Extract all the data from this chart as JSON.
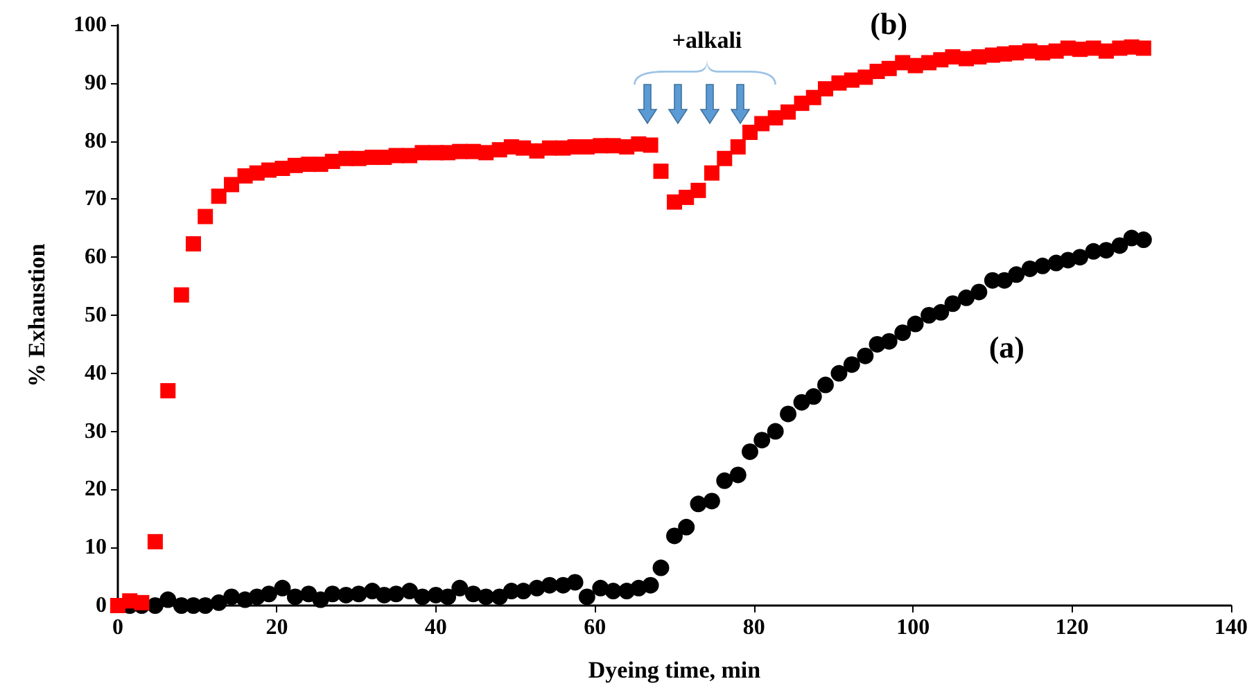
{
  "chart_data": {
    "type": "scatter",
    "xlabel": "Dyeing time, min",
    "ylabel": "% Exhaustion",
    "xlim": [
      0,
      140
    ],
    "xticks": [
      0,
      20,
      40,
      60,
      80,
      100,
      120,
      140
    ],
    "ylim": [
      0,
      100
    ],
    "yticks": [
      0,
      10,
      20,
      30,
      40,
      50,
      60,
      70,
      80,
      90,
      100
    ],
    "grid": false,
    "series": [
      {
        "name": "(a)",
        "color": "#000000",
        "marker": "circle",
        "x": [
          1.5,
          3,
          4.7,
          6.3,
          8,
          9.5,
          11,
          12.7,
          14.3,
          16,
          17.5,
          19,
          20.7,
          22.3,
          24,
          25.5,
          27,
          28.7,
          30.3,
          32,
          33.5,
          35,
          36.7,
          38.3,
          40,
          41.5,
          43,
          44.7,
          46.3,
          48,
          49.5,
          51,
          52.7,
          54.3,
          56,
          57.5,
          59,
          60.7,
          62.3,
          64,
          65.5,
          67,
          68.3,
          70,
          71.5,
          73,
          74.7,
          76.3,
          78,
          79.5,
          81,
          82.7,
          84.3,
          86,
          87.5,
          89,
          90.7,
          92.3,
          94,
          95.5,
          97,
          98.7,
          100.3,
          102,
          103.5,
          105,
          106.7,
          108.3,
          110,
          111.5,
          113,
          114.7,
          116.3,
          118,
          119.5,
          121,
          122.7,
          124.3,
          126,
          127.5,
          129
        ],
        "values": [
          0,
          0,
          0,
          1,
          0,
          0,
          0,
          0.5,
          1.5,
          1,
          1.5,
          2,
          3,
          1.5,
          2,
          1,
          2,
          1.8,
          2,
          2.5,
          1.8,
          2,
          2.5,
          1.5,
          1.8,
          1.5,
          3,
          2,
          1.5,
          1.5,
          2.5,
          2.5,
          3,
          3.5,
          3.5,
          4,
          1.5,
          3,
          2.5,
          2.5,
          3,
          3.5,
          6.5,
          12,
          13.5,
          17.5,
          18,
          21.5,
          22.5,
          26.5,
          28.5,
          30,
          33,
          35,
          36,
          38,
          40,
          41.5,
          43,
          45,
          45.5,
          47,
          48.5,
          50,
          50.5,
          52,
          53,
          54,
          56,
          56,
          57,
          58,
          58.5,
          59,
          59.5,
          60,
          61,
          61.2,
          62,
          63.3,
          63
        ]
      },
      {
        "name": "(b)",
        "color": "#ff0000",
        "marker": "square",
        "x": [
          0,
          1.5,
          3,
          4.7,
          6.3,
          8,
          9.5,
          11,
          12.7,
          14.3,
          16,
          17.5,
          19,
          20.7,
          22.3,
          24,
          25.5,
          27,
          28.7,
          30.3,
          32,
          33.5,
          35,
          36.7,
          38.3,
          40,
          41.5,
          43,
          44.7,
          46.3,
          48,
          49.5,
          51,
          52.7,
          54.3,
          56,
          57.5,
          59,
          60.7,
          62.3,
          64,
          65.5,
          67,
          68.3,
          70,
          71.5,
          73,
          74.7,
          76.3,
          78,
          79.5,
          81,
          82.7,
          84.3,
          86,
          87.5,
          89,
          90.7,
          92.3,
          94,
          95.5,
          97,
          98.7,
          100.3,
          102,
          103.5,
          105,
          106.7,
          108.3,
          110,
          111.5,
          113,
          114.7,
          116.3,
          118,
          119.5,
          121,
          122.7,
          124.3,
          126,
          127.5,
          129
        ],
        "values": [
          0,
          0.8,
          0.5,
          11,
          37,
          53.5,
          62.3,
          67,
          70.5,
          72.5,
          74,
          74.5,
          75,
          75.3,
          75.8,
          76,
          76,
          76.5,
          77,
          77,
          77.2,
          77.2,
          77.5,
          77.5,
          78,
          78,
          78,
          78.2,
          78.2,
          78,
          78.5,
          79,
          78.8,
          78.3,
          78.8,
          78.8,
          79,
          79,
          79.2,
          79.2,
          79,
          79.5,
          79.3,
          74.8,
          69.5,
          70.3,
          71.5,
          74.5,
          77,
          79,
          81.5,
          83,
          84,
          85,
          86.5,
          87.5,
          89,
          90,
          90.5,
          91,
          92,
          92.5,
          93.5,
          93,
          93.5,
          94,
          94.5,
          94.2,
          94.5,
          94.8,
          95,
          95.2,
          95.5,
          95.2,
          95.5,
          96,
          95.8,
          96,
          95.5,
          96,
          96.2,
          96
        ]
      }
    ],
    "annotations": [
      "+alkali"
    ]
  }
}
